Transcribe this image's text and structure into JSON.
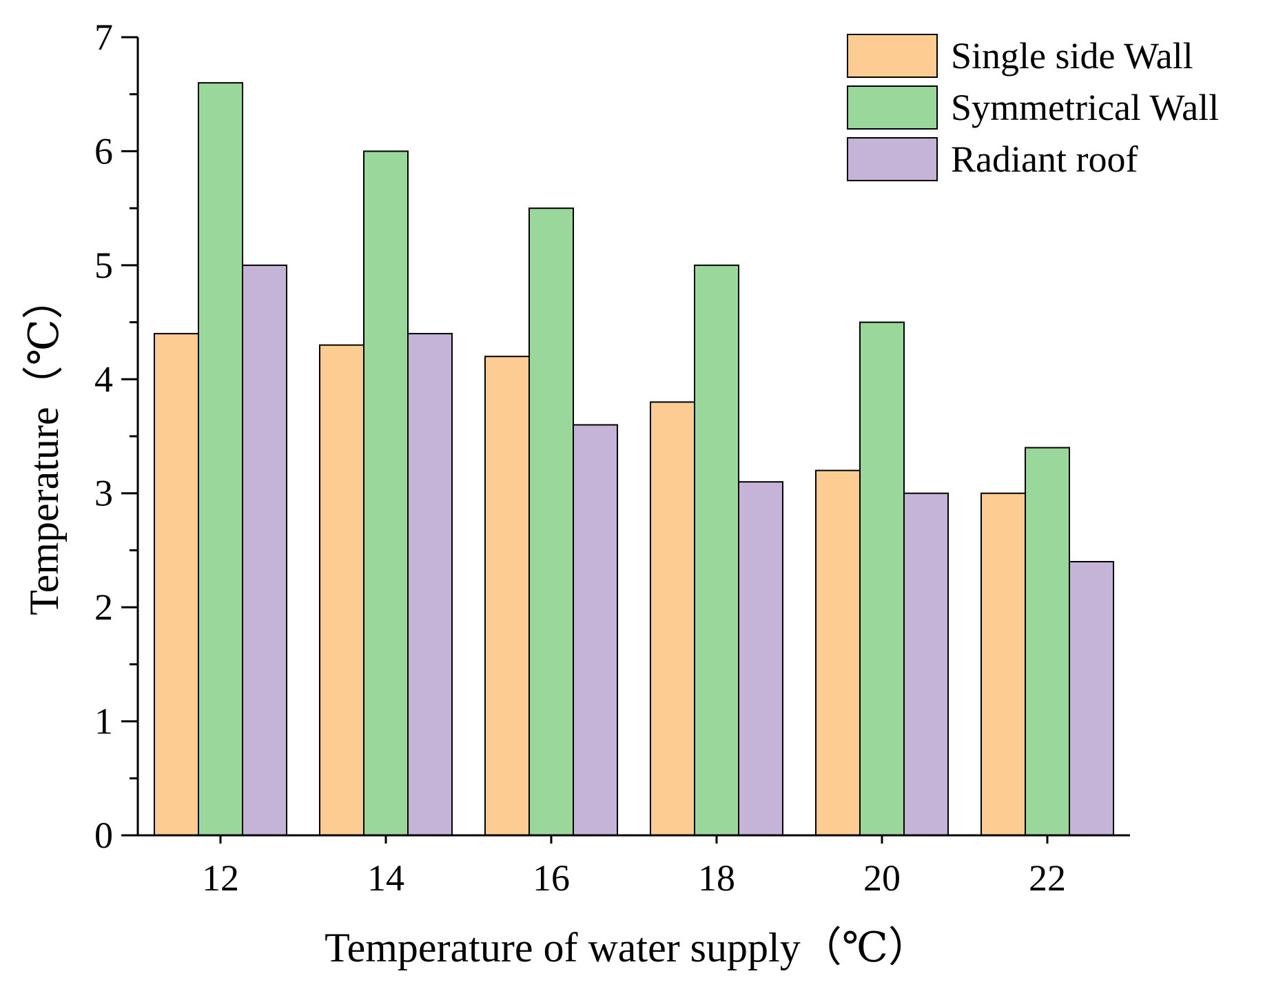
{
  "chart_data": {
    "type": "bar",
    "title": "",
    "xlabel": "Temperature of water supply（℃）",
    "ylabel": "Temperature（℃）",
    "categories": [
      "12",
      "14",
      "16",
      "18",
      "20",
      "22"
    ],
    "ylim": [
      0,
      7
    ],
    "yticks": [
      "0",
      "1",
      "2",
      "3",
      "4",
      "5",
      "6",
      "7"
    ],
    "series": [
      {
        "name": "Single side Wall",
        "color": "#FDCC92",
        "values": [
          4.4,
          4.3,
          4.2,
          3.8,
          3.2,
          3.0
        ]
      },
      {
        "name": "Symmetrical Wall",
        "color": "#9AD79A",
        "values": [
          6.6,
          6.0,
          5.5,
          5.0,
          4.5,
          3.4
        ]
      },
      {
        "name": "Radiant roof",
        "color": "#C6B4D8",
        "values": [
          5.0,
          4.4,
          3.6,
          3.1,
          3.0,
          2.4
        ]
      }
    ],
    "legend_position": "top-right",
    "grid": false
  }
}
